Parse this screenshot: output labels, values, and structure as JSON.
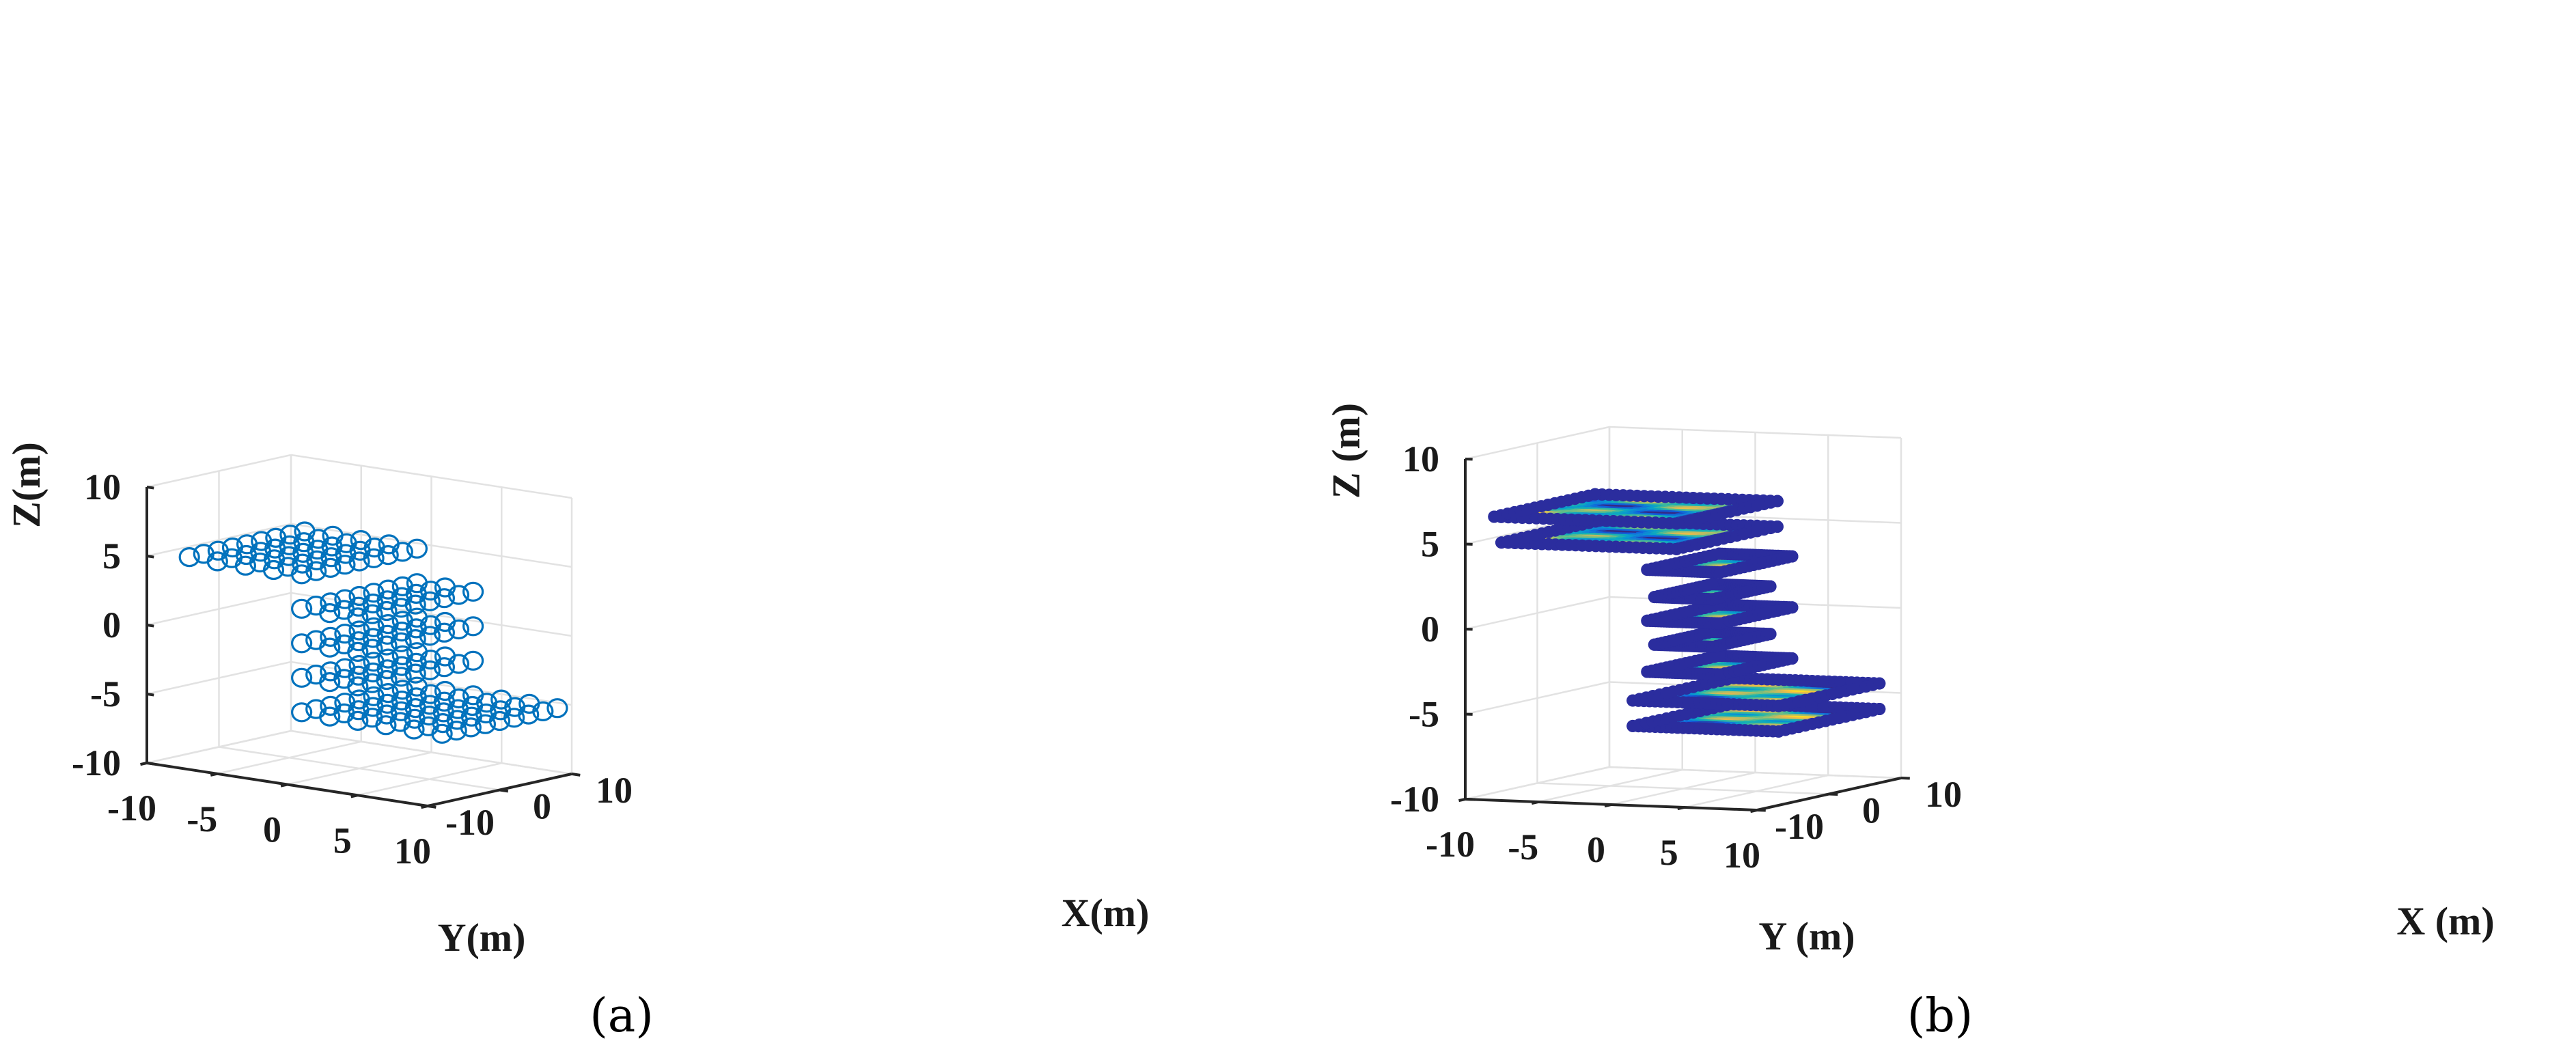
{
  "chart_data": [
    {
      "type": "scatter3d",
      "panel_label": "(a)",
      "xlabel": "X(m)",
      "ylabel": "Y(m)",
      "zlabel": "Z(m)",
      "xlim": [
        -10,
        10
      ],
      "ylim": [
        -10,
        10
      ],
      "zlim": [
        -10,
        10
      ],
      "x_ticks": [
        "-10",
        "0",
        "10"
      ],
      "y_ticks": [
        "-10",
        "-5",
        "0",
        "5",
        "10"
      ],
      "z_ticks": [
        "-10",
        "-5",
        "0",
        "5",
        "10"
      ],
      "grid": true,
      "marker": "open-circle",
      "marker_color": "#0072bd",
      "layers": [
        {
          "z": 5,
          "grid_x": [
            -8,
            8
          ],
          "grid_y": [
            -8,
            0
          ],
          "step": 2
        },
        {
          "z": 2.5,
          "grid_x": [
            -8,
            8
          ],
          "grid_y": [
            0,
            4
          ],
          "step": 2
        },
        {
          "z": 0,
          "grid_x": [
            -8,
            8
          ],
          "grid_y": [
            0,
            4
          ],
          "step": 2
        },
        {
          "z": -2.5,
          "grid_x": [
            -8,
            8
          ],
          "grid_y": [
            0,
            4
          ],
          "step": 2
        },
        {
          "z": -5,
          "grid_x": [
            -8,
            8
          ],
          "grid_y": [
            0,
            10
          ],
          "step": 2
        }
      ]
    },
    {
      "type": "surface3d",
      "panel_label": "(b)",
      "xlabel": "X (m)",
      "ylabel": "Y (m)",
      "zlabel": "Z (m)",
      "xlim": [
        -10,
        10
      ],
      "ylim": [
        -10,
        10
      ],
      "zlim": [
        -10,
        10
      ],
      "x_ticks": [
        "-10",
        "0",
        "10"
      ],
      "y_ticks": [
        "-10",
        "-5",
        "0",
        "5",
        "10"
      ],
      "z_ticks": [
        "-10",
        "-5",
        "0",
        "5",
        "10"
      ],
      "grid": true,
      "colormap": "parula",
      "layers": [
        {
          "z": 6.5,
          "x": [
            -7,
            7
          ],
          "y": [
            -9.5,
            3
          ]
        },
        {
          "z": 5.0,
          "x": [
            -7,
            7
          ],
          "y": [
            -9.0,
            3
          ]
        },
        {
          "z": 3.5,
          "x": [
            -5,
            5
          ],
          "y": [
            0,
            5
          ]
        },
        {
          "z": 1.8,
          "x": [
            -4,
            4
          ],
          "y": [
            0,
            4
          ]
        },
        {
          "z": 0.5,
          "x": [
            -5,
            5
          ],
          "y": [
            0,
            5
          ]
        },
        {
          "z": -1.0,
          "x": [
            -4,
            4
          ],
          "y": [
            0,
            4
          ]
        },
        {
          "z": -2.5,
          "x": [
            -5,
            5
          ],
          "y": [
            0,
            5
          ]
        },
        {
          "z": -4.0,
          "x": [
            -7,
            7
          ],
          "y": [
            0,
            10
          ]
        },
        {
          "z": -5.5,
          "x": [
            -7,
            7
          ],
          "y": [
            0,
            10
          ]
        }
      ]
    }
  ]
}
